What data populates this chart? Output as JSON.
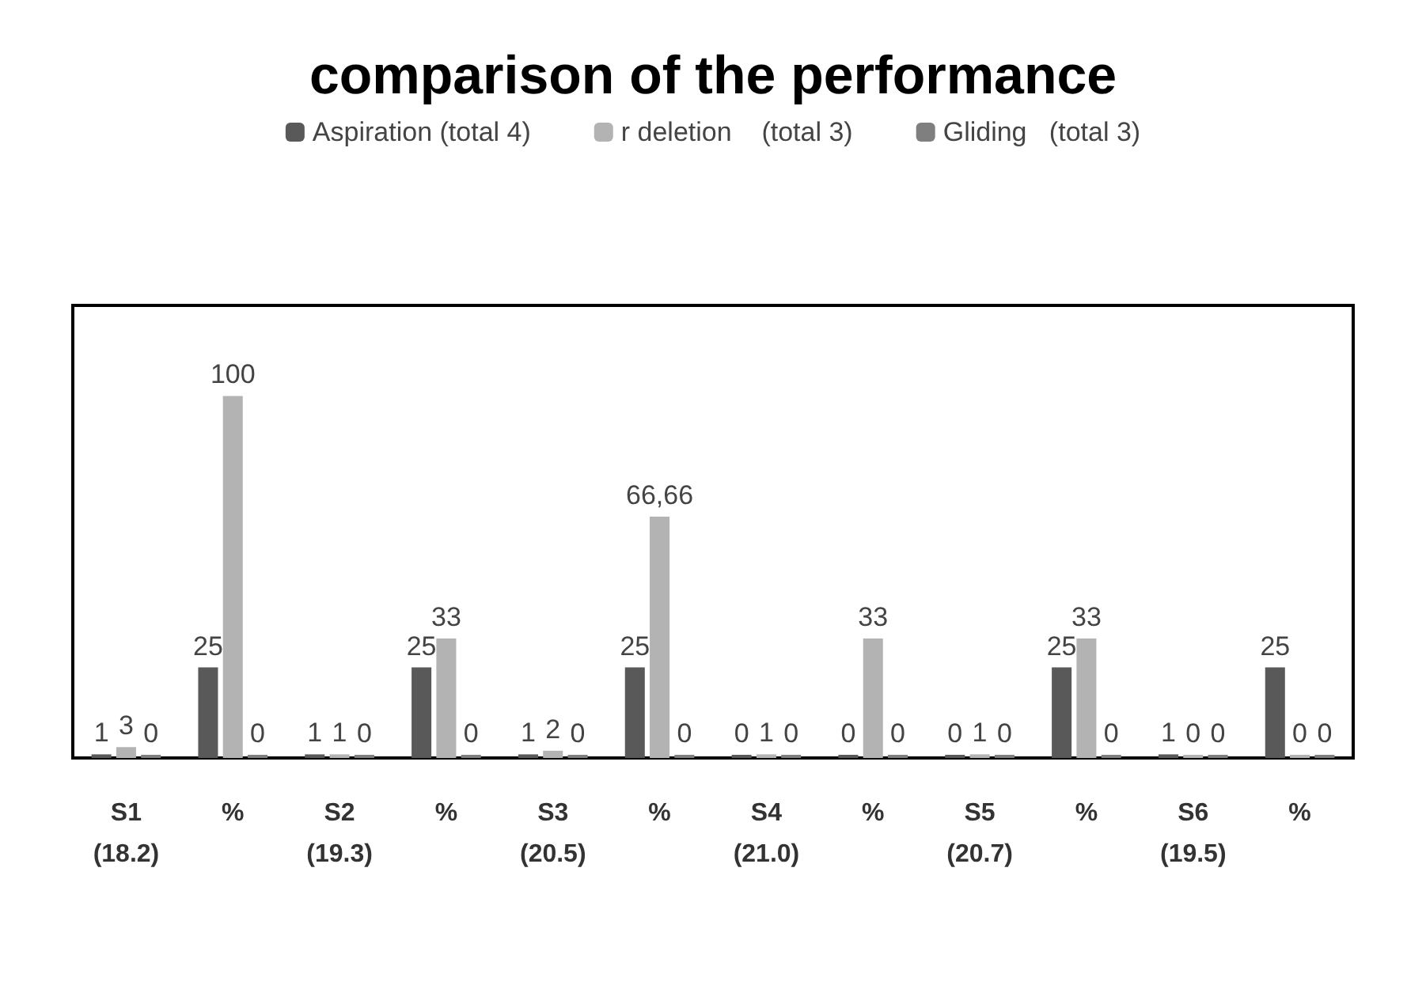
{
  "chart_data": {
    "type": "bar",
    "title": "comparison of the performance",
    "categories": [
      "S1\n(18.2)",
      "%",
      "S2\n(19.3)",
      "%",
      "S3\n(20.5)",
      "%",
      "S4\n(21.0)",
      "%",
      "S5\n(20.7)",
      "%",
      "S6\n(19.5)",
      "%"
    ],
    "series": [
      {
        "name": "Aspiration (total 4)",
        "color": "#595959",
        "values": [
          1,
          25,
          1,
          25,
          1,
          25,
          0,
          0,
          0,
          25,
          1,
          25
        ]
      },
      {
        "name": "r deletion    (total 3)",
        "color": "#b3b3b3",
        "values": [
          3,
          100,
          1,
          33,
          2,
          66.66,
          1,
          33,
          1,
          33,
          0,
          0
        ],
        "value_labels": [
          "3",
          "100",
          "1",
          "33",
          "2",
          "66,66",
          "1",
          "33",
          "1",
          "33",
          "0",
          "0"
        ]
      },
      {
        "name": "Gliding   (total 3)",
        "color": "#7f7f7f",
        "values": [
          0,
          0,
          0,
          0,
          0,
          0,
          0,
          0,
          0,
          0,
          0,
          0
        ]
      }
    ],
    "data_labels": true,
    "legend": "top"
  }
}
